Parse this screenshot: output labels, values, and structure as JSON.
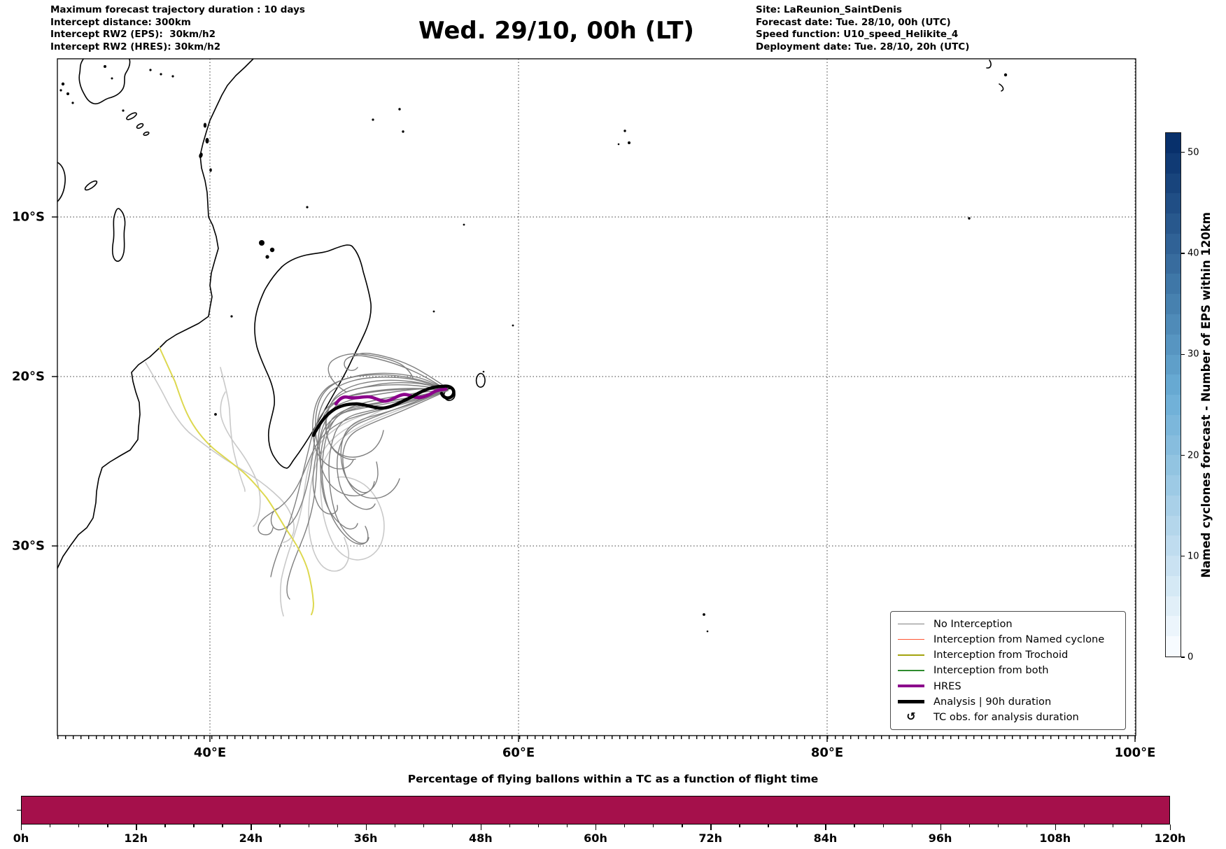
{
  "header": {
    "info_left": "Maximum forecast trajectory duration : 10 days\nIntercept distance: 300km\nIntercept RW2 (EPS):  30km/h2\nIntercept RW2 (HRES): 30km/h2",
    "title": "Wed. 29/10, 00h (LT)",
    "info_right": "Site: LaReunion_SaintDenis\nForecast date: Tue. 28/10, 00h (UTC)\nSpeed function: U10_speed_Helikite_4\nDeployment date: Tue. 28/10, 20h (UTC)"
  },
  "map": {
    "lat_ticks": [
      "10°S",
      "20°S",
      "30°S"
    ],
    "lon_ticks": [
      "40°E",
      "60°E",
      "80°E",
      "100°E"
    ],
    "trajectory_colors": {
      "no_interception": "#7f7f7f",
      "no_interception_light": "#c9c9c9",
      "trochoid": "#ddd84f",
      "hres": "#8b008b",
      "analysis": "#000000",
      "coastline": "#000000"
    },
    "legend": {
      "items": [
        {
          "label": "No Interception",
          "color": "#808080",
          "weight": 1.6,
          "marker": "line"
        },
        {
          "label": "Interception from Named cyclone",
          "color": "#ff5533",
          "weight": 1.6,
          "marker": "line"
        },
        {
          "label": "Interception from Trochoid",
          "color": "#a3a30e",
          "weight": 1.6,
          "marker": "line"
        },
        {
          "label": "Interception from both",
          "color": "#2e8b2e",
          "weight": 1.6,
          "marker": "line"
        },
        {
          "label": "HRES",
          "color": "#8b008b",
          "weight": 4.5,
          "marker": "line"
        },
        {
          "label": "Analysis | 90h duration",
          "color": "#000000",
          "weight": 4.5,
          "marker": "line"
        },
        {
          "label": "TC obs. for analysis duration",
          "color": "#000000",
          "weight": 0,
          "marker": "↺"
        }
      ]
    }
  },
  "colorbar": {
    "label": "Named cyclones forecast - Number of EPS within 120km",
    "ticks": [
      0,
      10,
      20,
      30,
      40,
      50
    ],
    "vmin": 0,
    "vmax": 52,
    "segments": 26,
    "color_low": "#f7fbff",
    "color_mid": "#6baed6",
    "color_high": "#08306b"
  },
  "chart_data": [
    {
      "type": "line",
      "subtype": "trajectory-map",
      "title": "Wed. 29/10, 00h (LT)",
      "lon_ticks": [
        "40°E",
        "60°E",
        "80°E",
        "100°E"
      ],
      "lat_ticks": [
        "10°S",
        "20°S",
        "30°S"
      ],
      "launch_site": "LaReunion_SaintDenis",
      "series_classes": [
        "No Interception",
        "Interception from Named cyclone",
        "Interception from Trochoid",
        "Interception from both",
        "HRES",
        "Analysis | 90h duration"
      ],
      "grid": "dotted",
      "legend_position": "lower right"
    },
    {
      "type": "bar",
      "title": "Percentage of flying ballons within a TC as a function of flight time",
      "x_ticks": [
        "0h",
        "12h",
        "24h",
        "36h",
        "48h",
        "60h",
        "72h",
        "84h",
        "96h",
        "108h",
        "120h"
      ],
      "x_range_hours": [
        0,
        120
      ],
      "x_minor_step_hours": 3,
      "values_percent": [
        100,
        100,
        100,
        100,
        100,
        100,
        100,
        100,
        100,
        100,
        100
      ],
      "ylim": [
        0,
        100
      ],
      "bar_color": "#a5104b",
      "grid": false,
      "legend_position": "none"
    }
  ]
}
